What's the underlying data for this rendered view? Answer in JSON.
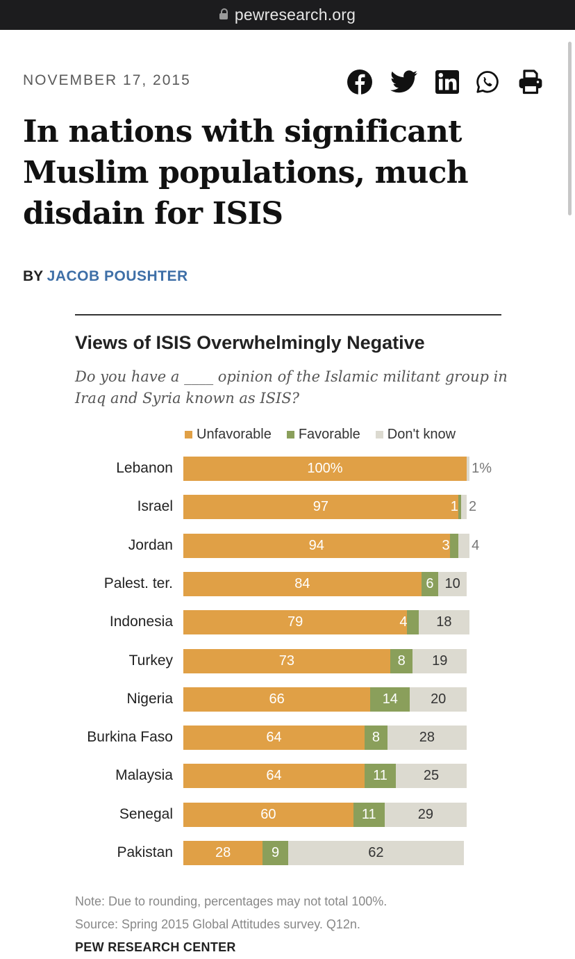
{
  "browser": {
    "url": "pewresearch.org"
  },
  "article": {
    "date": "NOVEMBER 17, 2015",
    "headline": "In nations with significant Muslim populations, much disdain for ISIS",
    "byline_prefix": "BY",
    "author": "JACOB POUSHTER"
  },
  "share_icons": [
    "facebook-icon",
    "twitter-icon",
    "linkedin-icon",
    "whatsapp-icon",
    "print-icon"
  ],
  "colors": {
    "unfavorable": "#e0a046",
    "favorable": "#8a9f5b",
    "dont_know": "#dcdad0",
    "author": "#3e6fa7"
  },
  "chart_data": {
    "type": "bar",
    "orientation": "horizontal-stacked",
    "title": "Views of ISIS Overwhelmingly Negative",
    "subtitle": "Do you have a ____ opinion of the Islamic militant group in Iraq and Syria known as ISIS?",
    "legend": [
      "Unfavorable",
      "Favorable",
      "Don't know"
    ],
    "legend_position": "top",
    "categories": [
      "Lebanon",
      "Israel",
      "Jordan",
      "Palest. ter.",
      "Indonesia",
      "Turkey",
      "Nigeria",
      "Burkina Faso",
      "Malaysia",
      "Senegal",
      "Pakistan"
    ],
    "series": [
      {
        "name": "Unfavorable",
        "values": [
          100,
          97,
          94,
          84,
          79,
          73,
          66,
          64,
          64,
          60,
          28
        ],
        "labels": [
          "100%",
          "97",
          "94",
          "84",
          "79",
          "73",
          "66",
          "64",
          "64",
          "60",
          "28"
        ]
      },
      {
        "name": "Favorable",
        "values": [
          0,
          1,
          3,
          6,
          4,
          8,
          14,
          8,
          11,
          11,
          9
        ],
        "labels": [
          "",
          "1",
          "3",
          "6",
          "4",
          "8",
          "14",
          "8",
          "11",
          "11",
          "9"
        ]
      },
      {
        "name": "Don't know",
        "values": [
          1,
          2,
          4,
          10,
          18,
          19,
          20,
          28,
          25,
          29,
          62
        ],
        "labels": [
          "1%",
          "2",
          "4",
          "10",
          "18",
          "19",
          "20",
          "28",
          "25",
          "29",
          "62"
        ]
      }
    ],
    "note": "Note: Due to rounding, percentages may not total 100%.",
    "source": "Source: Spring 2015 Global Attitudes survey. Q12n.",
    "publisher": "PEW RESEARCH CENTER"
  }
}
